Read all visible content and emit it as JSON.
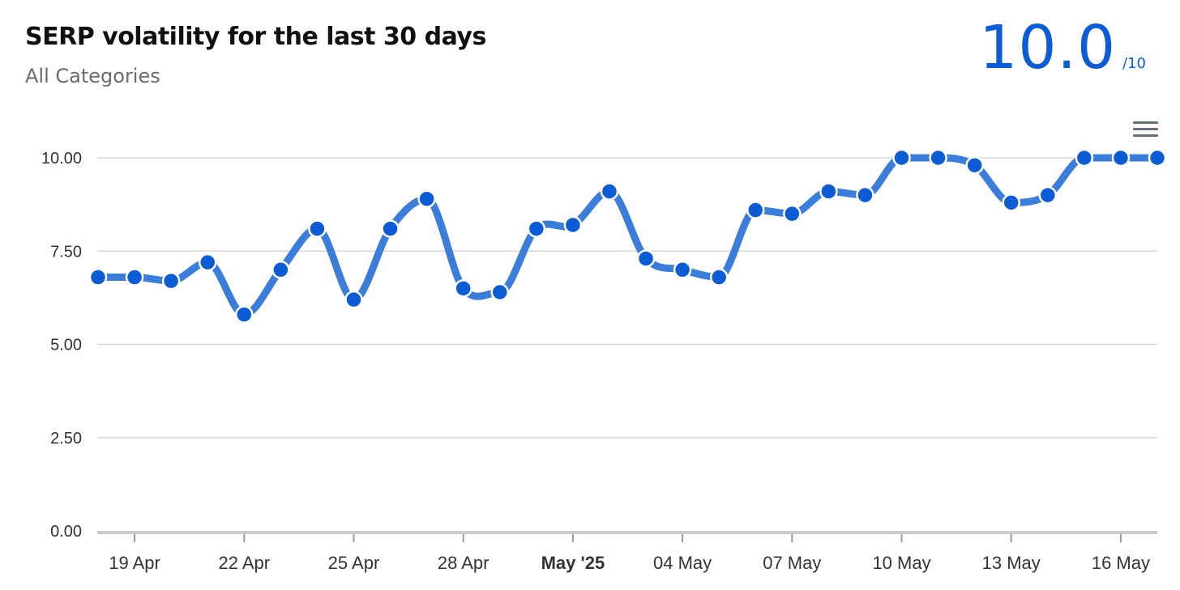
{
  "header": {
    "title": "SERP volatility for the last 30 days",
    "subtitle": "All Categories",
    "score_value": "10.0",
    "score_max": "/10"
  },
  "icons": {
    "menu": "hamburger-menu-icon"
  },
  "colors": {
    "line": "#3b7ddb",
    "point": "#0b5cd5",
    "score": "#0b5cd5",
    "grid": "#d9d9d9"
  },
  "chart_data": {
    "type": "line",
    "title": "SERP volatility for the last 30 days",
    "subtitle": "All Categories",
    "x_start": "18 Apr",
    "x_end": "17 May",
    "xtick_labels": [
      "19 Apr",
      "22 Apr",
      "25 Apr",
      "28 Apr",
      "May '25",
      "04 May",
      "07 May",
      "10 May",
      "13 May",
      "16 May"
    ],
    "xtick_dates": [
      "19 Apr",
      "22 Apr",
      "25 Apr",
      "28 Apr",
      "01 May",
      "04 May",
      "07 May",
      "10 May",
      "13 May",
      "16 May"
    ],
    "ytick_labels": [
      "0.00",
      "2.50",
      "5.00",
      "7.50",
      "10.00"
    ],
    "yticks": [
      0,
      2.5,
      5,
      7.5,
      10
    ],
    "ylim": [
      0,
      10
    ],
    "grid": true,
    "legend": false,
    "series": [
      {
        "x": [
          "18 Apr",
          "19 Apr",
          "20 Apr",
          "21 Apr",
          "22 Apr",
          "23 Apr",
          "24 Apr",
          "25 Apr",
          "26 Apr",
          "27 Apr",
          "28 Apr",
          "29 Apr",
          "30 Apr",
          "01 May",
          "02 May",
          "03 May",
          "04 May",
          "05 May",
          "06 May",
          "07 May",
          "08 May",
          "09 May",
          "10 May",
          "11 May",
          "12 May",
          "13 May",
          "14 May",
          "15 May",
          "16 May",
          "17 May"
        ],
        "values": [
          6.8,
          6.8,
          6.7,
          7.2,
          5.8,
          7.0,
          8.1,
          6.2,
          8.1,
          8.9,
          6.5,
          6.4,
          8.1,
          8.2,
          9.1,
          7.3,
          7.0,
          6.8,
          8.6,
          8.5,
          9.1,
          9.0,
          10.0,
          10.0,
          9.8,
          8.8,
          9.0,
          10.0,
          10.0,
          10.0
        ]
      }
    ]
  }
}
